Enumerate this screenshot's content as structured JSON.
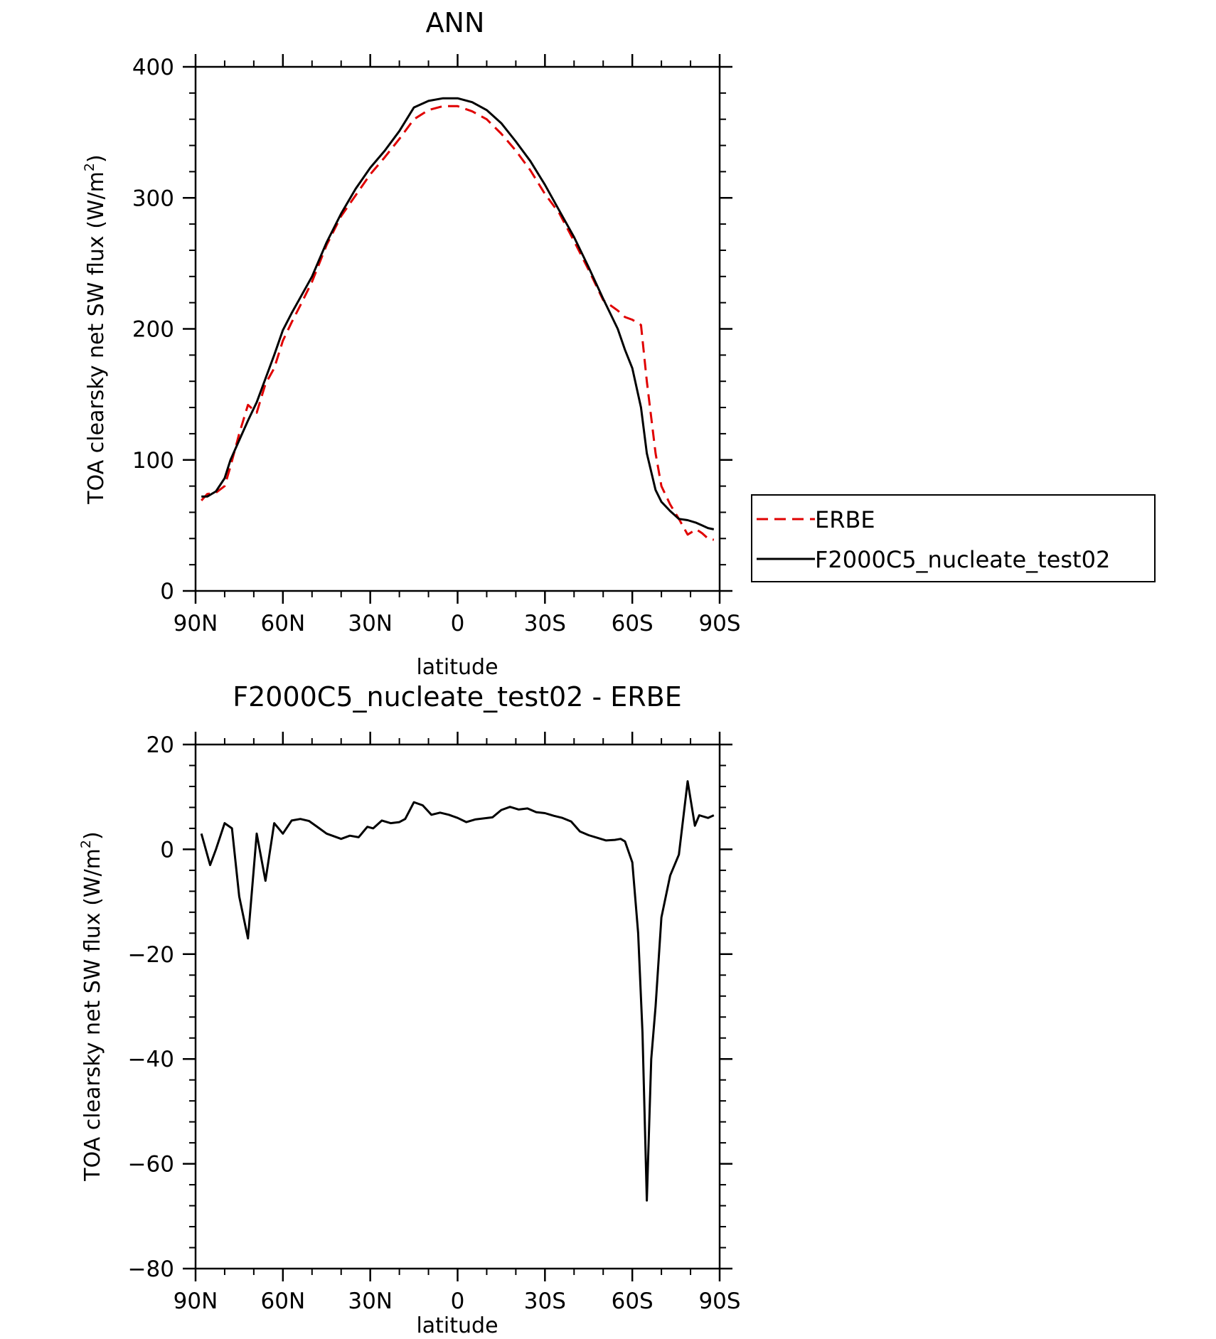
{
  "chart_data": [
    {
      "type": "line",
      "title": "ANN",
      "xlabel": "latitude",
      "ylabel_prefix": "TOA clearsky net SW flux (W/m",
      "ylabel_sup": "2",
      "ylabel_suffix": ")",
      "xlim": [
        90,
        -90
      ],
      "ylim": [
        0,
        400
      ],
      "xticks": [
        {
          "value": 90,
          "label": "90N"
        },
        {
          "value": 60,
          "label": "60N"
        },
        {
          "value": 30,
          "label": "30N"
        },
        {
          "value": 0,
          "label": "0"
        },
        {
          "value": -30,
          "label": "30S"
        },
        {
          "value": -60,
          "label": "60S"
        },
        {
          "value": -90,
          "label": "90S"
        }
      ],
      "yticks": [
        0,
        100,
        200,
        300,
        400
      ],
      "grid": false,
      "legend_position": "right",
      "series": [
        {
          "name": "ERBE",
          "color": "#e00000",
          "dash": "dashed",
          "x": [
            88,
            86,
            83,
            80,
            78,
            75,
            72,
            69,
            66,
            63,
            60,
            57,
            54,
            50,
            45,
            40,
            35,
            30,
            25,
            20,
            15,
            10,
            5,
            0,
            -5,
            -10,
            -15,
            -20,
            -25,
            -30,
            -35,
            -40,
            -45,
            -50,
            -55,
            -57.5,
            -60,
            -63,
            -65,
            -68,
            -70,
            -73,
            -76,
            -79,
            -82,
            -84,
            -86,
            -88
          ],
          "y": [
            69,
            74,
            75,
            80,
            95,
            120,
            142,
            136,
            158,
            170,
            191,
            205,
            218,
            236,
            264,
            286,
            302,
            318,
            331,
            345,
            360,
            367,
            370,
            370,
            366,
            360,
            349,
            336,
            321,
            303,
            288,
            267,
            245,
            222,
            214,
            209,
            207,
            203,
            160,
            105,
            80,
            66,
            55,
            43,
            47,
            44,
            40,
            39
          ]
        },
        {
          "name": "F2000C5_nucleate_test02",
          "color": "#000000",
          "dash": "solid",
          "x": [
            88,
            86,
            83,
            80,
            78,
            75,
            72,
            69,
            66,
            63,
            60,
            57,
            54,
            50,
            45,
            40,
            35,
            30,
            25,
            20,
            15,
            10,
            5,
            0,
            -5,
            -10,
            -15,
            -20,
            -25,
            -30,
            -35,
            -40,
            -45,
            -50,
            -55,
            -57.5,
            -60,
            -63,
            -65,
            -68,
            -70,
            -73,
            -76,
            -79,
            -82,
            -84,
            -86,
            -88
          ],
          "y": [
            72,
            72,
            76,
            86,
            100,
            115,
            130,
            144,
            162,
            180,
            199,
            212,
            224,
            240,
            266,
            288,
            307,
            323,
            336,
            351,
            369,
            374,
            376,
            376,
            373,
            367,
            357,
            343,
            328,
            310,
            290,
            270,
            247,
            223,
            200,
            184,
            170,
            140,
            105,
            77,
            68,
            61,
            55,
            54,
            52,
            50,
            48,
            47
          ]
        }
      ]
    },
    {
      "type": "line",
      "title": "F2000C5_nucleate_test02 - ERBE",
      "xlabel": "latitude",
      "ylabel_prefix": "TOA clearsky net SW flux (W/m",
      "ylabel_sup": "2",
      "ylabel_suffix": ")",
      "xlim": [
        90,
        -90
      ],
      "ylim": [
        -80,
        20
      ],
      "xticks": [
        {
          "value": 90,
          "label": "90N"
        },
        {
          "value": 60,
          "label": "60N"
        },
        {
          "value": 30,
          "label": "30N"
        },
        {
          "value": 0,
          "label": "0"
        },
        {
          "value": -30,
          "label": "30S"
        },
        {
          "value": -60,
          "label": "60S"
        },
        {
          "value": -90,
          "label": "90S"
        }
      ],
      "yticks": [
        -80,
        -60,
        -40,
        -20,
        0,
        20
      ],
      "grid": false,
      "series": [
        {
          "color": "#000000",
          "dash": "solid",
          "x": [
            88,
            85,
            83,
            80,
            77.5,
            75,
            72,
            69,
            66,
            63,
            60,
            57,
            54,
            51,
            48,
            45,
            40,
            37,
            34,
            31,
            29,
            26,
            23,
            20,
            18,
            15,
            12,
            9,
            6,
            3,
            0,
            -3,
            -6,
            -9,
            -12,
            -15,
            -18,
            -21,
            -24,
            -27,
            -30,
            -33,
            -36,
            -39,
            -42,
            -45,
            -48,
            -51,
            -54,
            -56,
            -57.5,
            -60,
            -62,
            -63.5,
            -65,
            -66.5,
            -68,
            -70,
            -73,
            -76,
            -79,
            -81.5,
            -83,
            -86,
            -88
          ],
          "y": [
            3,
            -3,
            0,
            5,
            4,
            -9,
            -17,
            3,
            -6,
            5,
            3,
            5.5,
            5.8,
            5.4,
            4.2,
            3,
            2,
            2.6,
            2.3,
            4.3,
            4,
            5.5,
            5,
            5.2,
            5.8,
            9,
            8.4,
            6.6,
            7,
            6.6,
            6,
            5.2,
            5.7,
            5.9,
            6.1,
            7.5,
            8.1,
            7.6,
            7.8,
            7.1,
            6.9,
            6.4,
            6,
            5.3,
            3.4,
            2.7,
            2.2,
            1.7,
            1.8,
            2,
            1.5,
            -2.5,
            -16,
            -35,
            -67,
            -40,
            -30,
            -13,
            -5,
            -1,
            13,
            4.5,
            6.5,
            6,
            6.5
          ]
        }
      ]
    }
  ]
}
